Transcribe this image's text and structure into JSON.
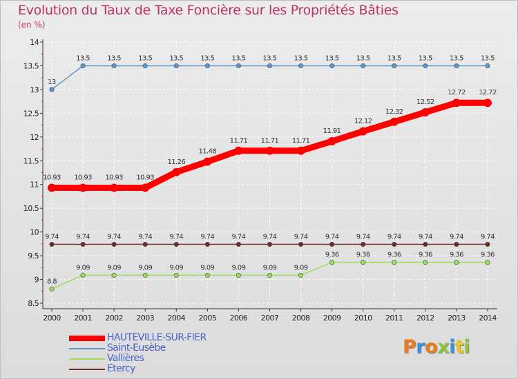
{
  "title": "Evolution du Taux de Taxe Foncière sur les Propriétés Bâties",
  "unit": "(en %)",
  "logo": {
    "text": "Proxiti",
    "letters": [
      "P",
      "r",
      "o",
      "x",
      "i",
      "t",
      "i"
    ]
  },
  "colors": {
    "hauteville": "#ff0000",
    "saint_eusebe": "#5b97cf",
    "vallieres": "#99e05a",
    "etercy": "#6e2b2b",
    "title": "#c0306a",
    "legend_text": "#4a64c8"
  },
  "chart_data": {
    "type": "line",
    "title": "Evolution du Taux de Taxe Foncière sur les Propriétés Bâties",
    "ylabel": "(en %)",
    "xlabel": "",
    "ylim": [
      8.5,
      14
    ],
    "yticks": [
      "8.5",
      "9",
      "9.5",
      "10",
      "10.5",
      "11",
      "11.5",
      "12",
      "12.5",
      "13",
      "13.5",
      "14"
    ],
    "x": [
      "2000",
      "2001",
      "2002",
      "2003",
      "2004",
      "2005",
      "2006",
      "2007",
      "2008",
      "2009",
      "2010",
      "2011",
      "2012",
      "2013",
      "2014"
    ],
    "series": [
      {
        "name": "HAUTEVILLE-SUR-FIER",
        "key": "hauteville",
        "values": [
          10.93,
          10.93,
          10.93,
          10.93,
          11.26,
          11.48,
          11.71,
          11.71,
          11.71,
          11.91,
          12.12,
          12.32,
          12.52,
          12.72,
          12.72
        ],
        "labels": [
          "10.93",
          "10.93",
          "10.93",
          "10.93",
          "11.26",
          "11.48",
          "11.71",
          "11.71",
          "11.71",
          "11.91",
          "12.12",
          "12.32",
          "12.52",
          "12.72",
          "12.72"
        ]
      },
      {
        "name": "Saint-Eusèbe",
        "key": "saint_eusebe",
        "values": [
          13,
          13.5,
          13.5,
          13.5,
          13.5,
          13.5,
          13.5,
          13.5,
          13.5,
          13.5,
          13.5,
          13.5,
          13.5,
          13.5,
          13.5
        ],
        "labels": [
          "13",
          "13.5",
          "13.5",
          "13.5",
          "13.5",
          "13.5",
          "13.5",
          "13.5",
          "13.5",
          "13.5",
          "13.5",
          "13.5",
          "13.5",
          "13.5",
          "13.5"
        ]
      },
      {
        "name": "Vallières",
        "key": "vallieres",
        "values": [
          8.8,
          9.09,
          9.09,
          9.09,
          9.09,
          9.09,
          9.09,
          9.09,
          9.09,
          9.36,
          9.36,
          9.36,
          9.36,
          9.36,
          9.36
        ],
        "labels": [
          "8.8",
          "9.09",
          "9.09",
          "9.09",
          "9.09",
          "9.09",
          "9.09",
          "9.09",
          "9.09",
          "9.36",
          "9.36",
          "9.36",
          "9.36",
          "9.36",
          "9.36"
        ]
      },
      {
        "name": "Etercy",
        "key": "etercy",
        "values": [
          9.74,
          9.74,
          9.74,
          9.74,
          9.74,
          9.74,
          9.74,
          9.74,
          9.74,
          9.74,
          9.74,
          9.74,
          9.74,
          9.74,
          9.74
        ],
        "labels": [
          "9.74",
          "9.74",
          "9.74",
          "9.74",
          "9.74",
          "9.74",
          "9.74",
          "9.74",
          "9.74",
          "9.74",
          "9.74",
          "9.74",
          "9.74",
          "9.74",
          "9.74"
        ]
      }
    ]
  }
}
